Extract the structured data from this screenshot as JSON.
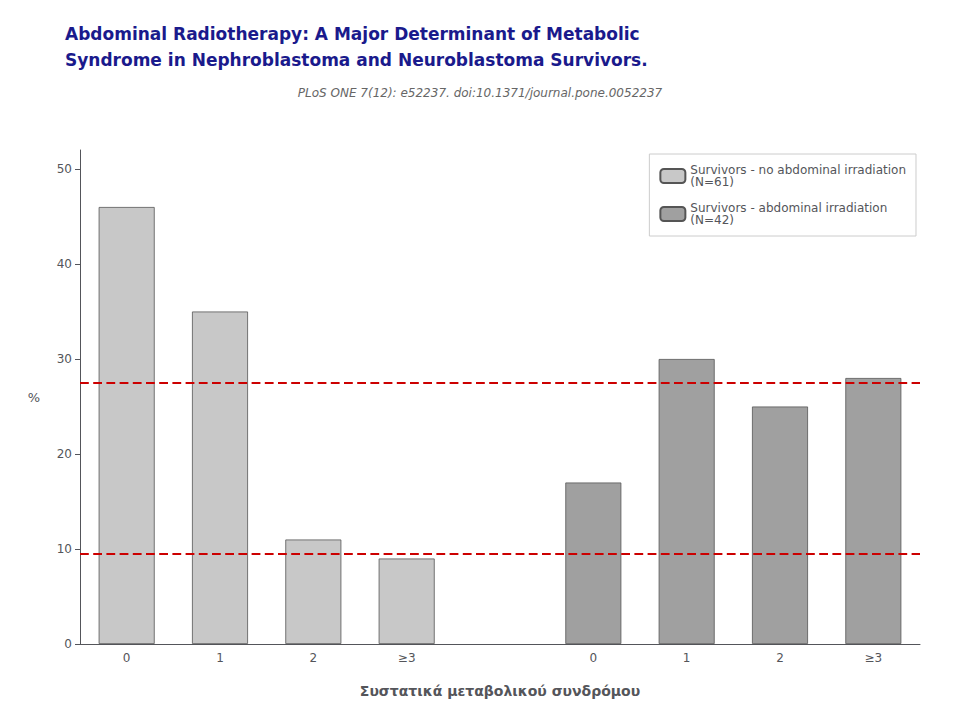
{
  "chart_data": {
    "type": "bar",
    "title": "Abdominal Radiotherapy: A Major Determinant of Metabolic\nSyndrome in Nephroblastoma and Neuroblastoma Survivors.",
    "subtitle": "PLoS ONE 7(12): e52237. doi:10.1371/journal.pone.0052237",
    "xlabel": "Συστατικά μεταβολικού συνδρόμου",
    "ylabel": "%",
    "categories": [
      "0",
      "1",
      "2",
      "≥3",
      null,
      "0",
      "1",
      "2",
      "≥3"
    ],
    "series": [
      {
        "name": "Survivors - no abdominal irradiation\n(N=61)",
        "color": "#c8c8c8",
        "values": [
          46,
          35,
          11,
          9,
          null,
          null,
          null,
          null,
          null
        ]
      },
      {
        "name": "Survivors - abdominal irradiation\n(N=42)",
        "color": "#a0a0a0",
        "values": [
          null,
          null,
          null,
          null,
          null,
          17,
          30,
          25,
          28
        ]
      }
    ],
    "reference_lines": {
      "values": [
        27.5,
        9.5
      ],
      "color": "#cc0000",
      "line_style": "dashed"
    },
    "ylim": [
      0,
      52
    ],
    "yticks": [
      0,
      10,
      20,
      30,
      40,
      50
    ],
    "grid": false,
    "legend": "upper right"
  }
}
